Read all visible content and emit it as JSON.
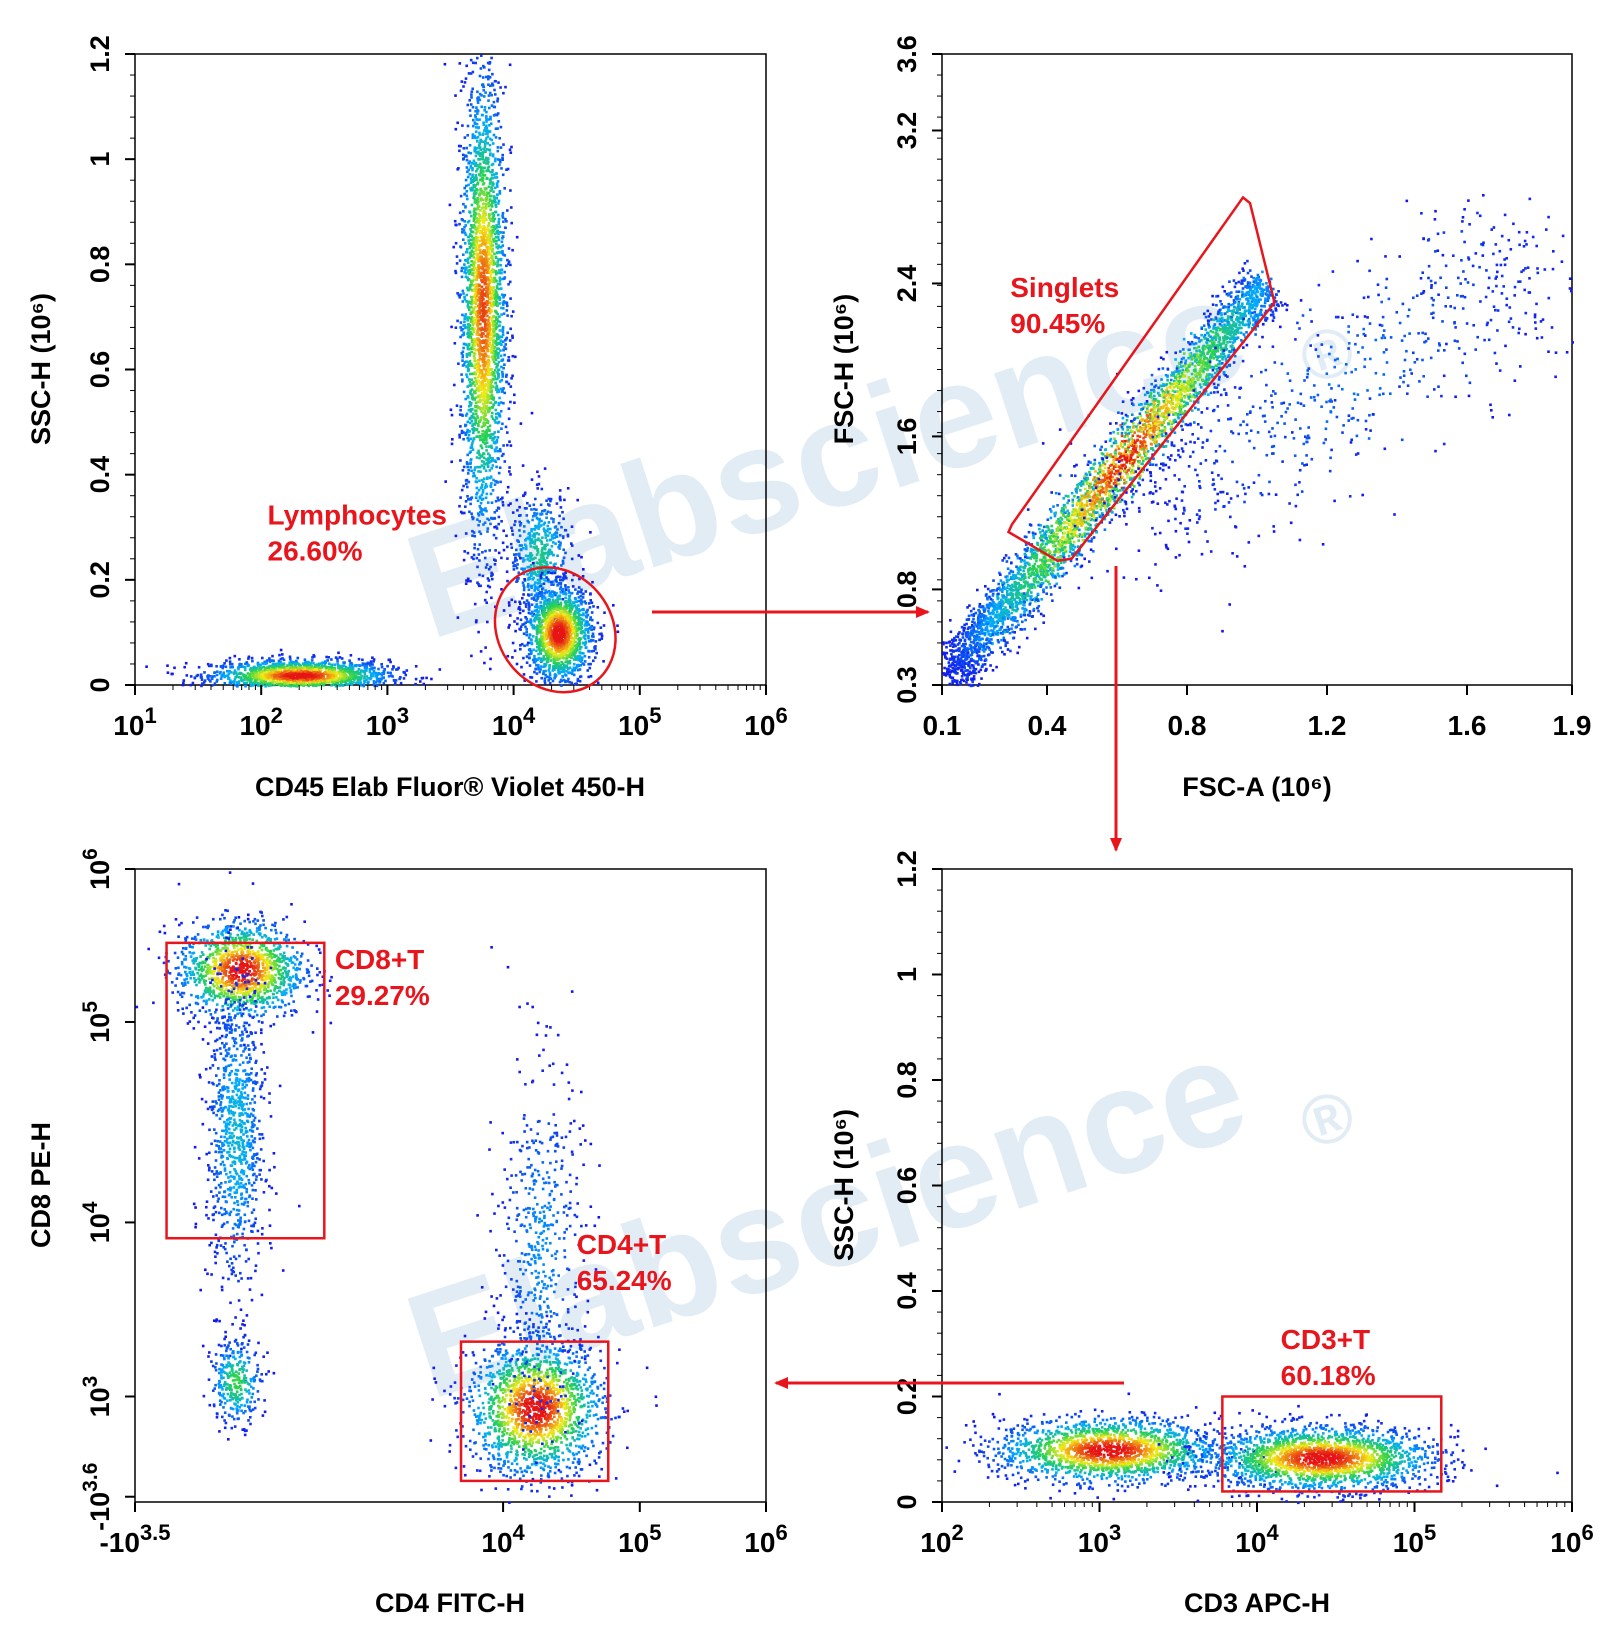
{
  "watermark": {
    "text": "Elabscience",
    "mark": "®",
    "color": "#dbe8f3"
  },
  "colors": {
    "gate": "#e8161c",
    "arrow": "#e8161c",
    "axis": "#000000"
  },
  "chart_data": [
    {
      "id": "p1",
      "type": "scatter",
      "density": true,
      "xlabel": "CD45 Elab Fluor® Violet 450-H",
      "ylabel": "SSC-H  (10⁶)",
      "x_scale": "log",
      "xlim": [
        1,
        6
      ],
      "y_scale": "linear",
      "ylim": [
        0,
        1.2
      ],
      "x_ticks": [
        {
          "v": 1,
          "base": "10",
          "exp": "1"
        },
        {
          "v": 2,
          "base": "10",
          "exp": "2"
        },
        {
          "v": 3,
          "base": "10",
          "exp": "3"
        },
        {
          "v": 4,
          "base": "10",
          "exp": "4"
        },
        {
          "v": 5,
          "base": "10",
          "exp": "5"
        },
        {
          "v": 6,
          "base": "10",
          "exp": "6"
        }
      ],
      "y_ticks": [
        {
          "v": 0,
          "label": "0"
        },
        {
          "v": 0.2,
          "label": "0.2"
        },
        {
          "v": 0.4,
          "label": "0.4"
        },
        {
          "v": 0.6,
          "label": "0.6"
        },
        {
          "v": 0.8,
          "label": "0.8"
        },
        {
          "v": 1,
          "label": "1"
        },
        {
          "v": 1.2,
          "label": "1.2"
        }
      ],
      "clusters": [
        {
          "x": 2.3,
          "y": 0.02,
          "sx": 0.35,
          "sy": 0.015,
          "n": 1600,
          "w": 1.0
        },
        {
          "x": 3.75,
          "y": 0.72,
          "sx": 0.09,
          "sy": 0.22,
          "n": 2600,
          "w": 0.9
        },
        {
          "x": 4.2,
          "y": 0.25,
          "sx": 0.12,
          "sy": 0.06,
          "n": 500,
          "w": 0.4
        },
        {
          "x": 4.35,
          "y": 0.1,
          "sx": 0.13,
          "sy": 0.045,
          "n": 1500,
          "w": 1.0
        }
      ],
      "gates": [
        {
          "shape": "ellipse",
          "name": "Lymphocytes",
          "percent": "26.60%",
          "cx": 4.33,
          "cy": 0.105,
          "rx": 0.45,
          "ry": 0.052,
          "angle": -38,
          "label_x": 2.05,
          "label_y": 0.305
        }
      ]
    },
    {
      "id": "p2",
      "type": "scatter",
      "density": true,
      "xlabel": "FSC-A",
      "xunit": "(10⁶)",
      "ylabel": "FSC-H  (10⁶)",
      "x_scale": "linear",
      "xlim": [
        0.1,
        1.9
      ],
      "y_scale": "linear",
      "ylim": [
        0.3,
        3.6
      ],
      "x_ticks": [
        {
          "v": 0.1,
          "label": "0.1"
        },
        {
          "v": 0.4,
          "label": "0.4"
        },
        {
          "v": 0.8,
          "label": "0.8"
        },
        {
          "v": 1.2,
          "label": "1.2"
        },
        {
          "v": 1.6,
          "label": "1.6"
        },
        {
          "v": 1.9,
          "label": "1.9"
        }
      ],
      "y_ticks": [
        {
          "v": 0.3,
          "label": "0.3"
        },
        {
          "v": 0.8,
          "label": "0.8"
        },
        {
          "v": 1.6,
          "label": "1.6"
        },
        {
          "v": 2.4,
          "label": "2.4"
        },
        {
          "v": 3.2,
          "label": "3.2"
        },
        {
          "v": 3.6,
          "label": "3.6"
        }
      ],
      "clusters": [
        {
          "diag": true,
          "x0": 0.12,
          "y0": 0.35,
          "x1": 1.02,
          "y1": 2.4,
          "spread": 0.05,
          "n": 3800,
          "w": 1.0
        },
        {
          "diag": true,
          "x0": 0.6,
          "y0": 1.1,
          "x1": 1.8,
          "y1": 2.6,
          "spread": 0.18,
          "n": 700,
          "w": 0.15
        }
      ],
      "gates": [
        {
          "shape": "polygon",
          "name": "Singlets",
          "percent": "90.45%",
          "points": [
            [
              0.29,
              1.1
            ],
            [
              0.43,
              0.95
            ],
            [
              0.47,
              0.96
            ],
            [
              1.05,
              2.3
            ],
            [
              0.98,
              2.82
            ],
            [
              0.96,
              2.85
            ],
            [
              0.3,
              1.14
            ]
          ],
          "label_x": 0.295,
          "label_y": 2.33
        }
      ]
    },
    {
      "id": "p3",
      "type": "scatter",
      "density": true,
      "xlabel": "CD4 FITC-H",
      "ylabel": "CD8 PE-H",
      "x_scale": "biexponential",
      "xlim": [
        0,
        6
      ],
      "y_scale": "biexponential",
      "ylim": [
        0,
        6
      ],
      "x_ticks": [
        {
          "v": 0,
          "base": "-10",
          "exp": "3.5"
        },
        {
          "v": 3.5,
          "base": "10",
          "exp": "4"
        },
        {
          "v": 4.8,
          "base": "10",
          "exp": "5"
        },
        {
          "v": 6,
          "base": "10",
          "exp": "6"
        }
      ],
      "y_ticks": [
        {
          "v": 0.05,
          "base": "-10",
          "exp": "3.6"
        },
        {
          "v": 1,
          "base": "10",
          "exp": "3"
        },
        {
          "v": 2.65,
          "base": "10",
          "exp": "4"
        },
        {
          "v": 4.55,
          "base": "10",
          "exp": "5"
        },
        {
          "v": 6,
          "base": "10",
          "exp": "6"
        }
      ],
      "clusters": [
        {
          "x": 1.0,
          "y": 5.05,
          "sx": 0.3,
          "sy": 0.23,
          "n": 1300,
          "w": 1.0
        },
        {
          "x": 0.95,
          "y": 3.5,
          "sx": 0.14,
          "sy": 0.75,
          "n": 900,
          "w": 0.3
        },
        {
          "x": 0.95,
          "y": 1.15,
          "sx": 0.12,
          "sy": 0.2,
          "n": 300,
          "w": 0.5
        },
        {
          "x": 3.8,
          "y": 0.9,
          "sx": 0.32,
          "sy": 0.32,
          "n": 1700,
          "w": 1.0
        },
        {
          "x": 3.85,
          "y": 2.4,
          "sx": 0.2,
          "sy": 0.9,
          "n": 500,
          "w": 0.2
        }
      ],
      "gates": [
        {
          "shape": "rect",
          "name": "CD8+T",
          "percent": "29.27%",
          "x0": 0.3,
          "y0": 2.5,
          "x1": 1.8,
          "y1": 5.3,
          "label_x": 1.9,
          "label_y": 5.05
        },
        {
          "shape": "rect",
          "name": "CD4+T",
          "percent": "65.24%",
          "x0": 3.1,
          "y0": 0.2,
          "x1": 4.5,
          "y1": 1.52,
          "label_x": 4.2,
          "label_y": 2.35
        }
      ]
    },
    {
      "id": "p4",
      "type": "scatter",
      "density": true,
      "xlabel": "CD3 APC-H",
      "ylabel": "SSC-H  (10⁶)",
      "x_scale": "log",
      "xlim": [
        2,
        6
      ],
      "y_scale": "linear",
      "ylim": [
        0,
        1.2
      ],
      "x_ticks": [
        {
          "v": 2,
          "base": "10",
          "exp": "2"
        },
        {
          "v": 3,
          "base": "10",
          "exp": "3"
        },
        {
          "v": 4,
          "base": "10",
          "exp": "4"
        },
        {
          "v": 5,
          "base": "10",
          "exp": "5"
        },
        {
          "v": 6,
          "base": "10",
          "exp": "6"
        }
      ],
      "y_ticks": [
        {
          "v": 0,
          "label": "0"
        },
        {
          "v": 0.2,
          "label": "0.2"
        },
        {
          "v": 0.4,
          "label": "0.4"
        },
        {
          "v": 0.6,
          "label": "0.6"
        },
        {
          "v": 0.8,
          "label": "0.8"
        },
        {
          "v": 1,
          "label": "1"
        },
        {
          "v": 1.2,
          "label": "1.2"
        }
      ],
      "clusters": [
        {
          "x": 3.05,
          "y": 0.1,
          "sx": 0.35,
          "sy": 0.03,
          "n": 1700,
          "w": 1.0
        },
        {
          "x": 4.4,
          "y": 0.085,
          "sx": 0.35,
          "sy": 0.03,
          "n": 2000,
          "w": 1.0
        }
      ],
      "gates": [
        {
          "shape": "rect",
          "name": "CD3+T",
          "percent": "60.18%",
          "x0": 3.78,
          "y0": 0.02,
          "x1": 5.17,
          "y1": 0.2,
          "label_x": 4.15,
          "label_y": 0.29
        }
      ]
    }
  ]
}
